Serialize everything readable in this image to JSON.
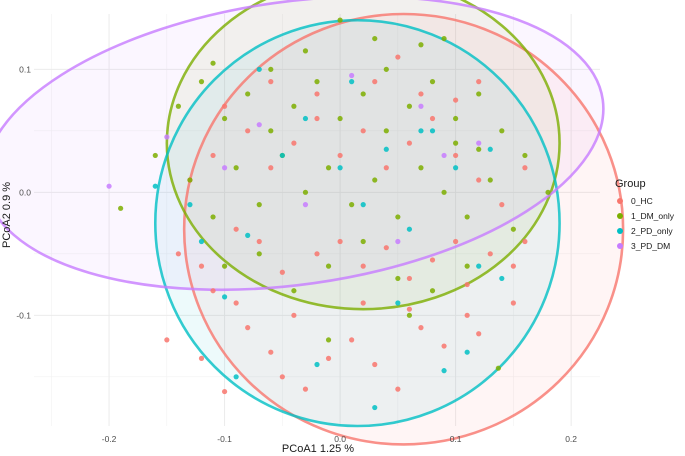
{
  "chart_data": {
    "type": "scatter",
    "xlabel": "PCoA1  1.25 %",
    "ylabel": "PCoA2  0.9 %",
    "xlim": [
      -0.265,
      0.225
    ],
    "ylim": [
      -0.19,
      0.145
    ],
    "x_ticks": [
      -0.2,
      -0.1,
      0.0,
      0.1,
      0.2
    ],
    "y_ticks": [
      -0.1,
      0.0,
      0.1
    ],
    "x_tick_labels": [
      "-0.2",
      "-0.1",
      "0.0",
      "0.1",
      "0.2"
    ],
    "y_tick_labels": [
      "-0.1",
      "0.0",
      "0.1"
    ],
    "grid": true,
    "legend": {
      "title": "Group",
      "position": "right",
      "entries": [
        "0_HC",
        "1_DM_only",
        "2_PD_only",
        "3_PD_DM"
      ]
    },
    "series": [
      {
        "name": "0_HC",
        "color": "#F8766D",
        "ellipse": {
          "center": [
            0.055,
            -0.03
          ],
          "rx": 0.19,
          "ry": 0.175,
          "angle": 0
        },
        "points": [
          [
            -0.15,
            -0.12
          ],
          [
            -0.12,
            -0.135
          ],
          [
            -0.1,
            -0.162
          ],
          [
            -0.08,
            -0.11
          ],
          [
            -0.06,
            -0.13
          ],
          [
            -0.05,
            -0.15
          ],
          [
            -0.03,
            -0.16
          ],
          [
            -0.01,
            -0.135
          ],
          [
            0.01,
            -0.12
          ],
          [
            0.03,
            -0.14
          ],
          [
            0.05,
            -0.16
          ],
          [
            0.07,
            -0.11
          ],
          [
            0.09,
            -0.125
          ],
          [
            0.11,
            -0.1
          ],
          [
            0.12,
            -0.115
          ],
          [
            -0.14,
            -0.05
          ],
          [
            -0.12,
            -0.06
          ],
          [
            -0.09,
            -0.03
          ],
          [
            -0.07,
            -0.04
          ],
          [
            -0.05,
            -0.065
          ],
          [
            -0.02,
            -0.05
          ],
          [
            0.0,
            -0.04
          ],
          [
            0.02,
            -0.06
          ],
          [
            0.04,
            -0.045
          ],
          [
            0.06,
            -0.07
          ],
          [
            0.08,
            -0.055
          ],
          [
            0.1,
            -0.04
          ],
          [
            0.13,
            -0.05
          ],
          [
            0.15,
            -0.06
          ],
          [
            0.16,
            -0.04
          ],
          [
            -0.13,
            0.01
          ],
          [
            -0.11,
            0.03
          ],
          [
            -0.08,
            0.05
          ],
          [
            -0.06,
            0.02
          ],
          [
            -0.04,
            0.04
          ],
          [
            -0.02,
            0.06
          ],
          [
            0.0,
            0.03
          ],
          [
            0.02,
            0.05
          ],
          [
            0.04,
            0.02
          ],
          [
            0.06,
            0.04
          ],
          [
            0.08,
            0.06
          ],
          [
            0.1,
            0.03
          ],
          [
            0.12,
            0.01
          ],
          [
            0.14,
            -0.01
          ],
          [
            0.16,
            0.02
          ],
          [
            -0.1,
            0.07
          ],
          [
            -0.06,
            0.09
          ],
          [
            -0.02,
            0.08
          ],
          [
            0.03,
            0.09
          ],
          [
            0.07,
            0.08
          ],
          [
            0.1,
            0.075
          ],
          [
            0.12,
            0.09
          ],
          [
            0.05,
            0.11
          ],
          [
            -0.09,
            -0.09
          ],
          [
            -0.04,
            -0.1
          ],
          [
            0.02,
            -0.09
          ],
          [
            0.06,
            -0.095
          ],
          [
            0.11,
            -0.075
          ],
          [
            0.15,
            -0.09
          ],
          [
            -0.11,
            -0.08
          ]
        ]
      },
      {
        "name": "1_DM_only",
        "color": "#7CAE00",
        "ellipse": {
          "center": [
            0.02,
            0.04
          ],
          "rx": 0.17,
          "ry": 0.135,
          "angle": 0
        },
        "points": [
          [
            -0.19,
            -0.013
          ],
          [
            -0.16,
            0.03
          ],
          [
            -0.14,
            0.07
          ],
          [
            -0.12,
            0.09
          ],
          [
            -0.1,
            0.06
          ],
          [
            -0.08,
            0.08
          ],
          [
            -0.06,
            0.1
          ],
          [
            -0.04,
            0.07
          ],
          [
            -0.02,
            0.09
          ],
          [
            0.0,
            0.06
          ],
          [
            0.02,
            0.08
          ],
          [
            0.04,
            0.1
          ],
          [
            0.06,
            0.07
          ],
          [
            0.08,
            0.09
          ],
          [
            0.1,
            0.06
          ],
          [
            0.12,
            0.08
          ],
          [
            0.14,
            0.05
          ],
          [
            0.16,
            0.03
          ],
          [
            0.18,
            0.0
          ],
          [
            0.15,
            -0.03
          ],
          [
            -0.13,
            0.01
          ],
          [
            -0.11,
            -0.02
          ],
          [
            -0.09,
            0.02
          ],
          [
            -0.07,
            -0.01
          ],
          [
            -0.05,
            0.03
          ],
          [
            -0.03,
            0.0
          ],
          [
            -0.01,
            0.02
          ],
          [
            0.01,
            -0.01
          ],
          [
            0.03,
            0.01
          ],
          [
            0.05,
            -0.02
          ],
          [
            0.07,
            0.02
          ],
          [
            0.09,
            0.0
          ],
          [
            0.11,
            -0.02
          ],
          [
            0.13,
            0.01
          ],
          [
            -0.1,
            -0.06
          ],
          [
            -0.07,
            -0.05
          ],
          [
            -0.04,
            -0.08
          ],
          [
            -0.01,
            -0.06
          ],
          [
            0.02,
            -0.04
          ],
          [
            0.05,
            -0.07
          ],
          [
            0.08,
            -0.08
          ],
          [
            0.11,
            -0.06
          ],
          [
            0.0,
            0.14
          ],
          [
            0.07,
            0.12
          ],
          [
            0.09,
            0.125
          ],
          [
            -0.11,
            0.105
          ],
          [
            -0.03,
            0.115
          ],
          [
            0.03,
            0.125
          ],
          [
            0.137,
            -0.143
          ],
          [
            0.06,
            -0.1
          ],
          [
            -0.01,
            -0.12
          ],
          [
            0.1,
            0.04
          ],
          [
            0.12,
            0.035
          ],
          [
            0.04,
            0.05
          ],
          [
            -0.06,
            0.05
          ]
        ]
      },
      {
        "name": "2_PD_only",
        "color": "#00BFC4",
        "ellipse": {
          "center": [
            0.015,
            -0.025
          ],
          "rx": 0.175,
          "ry": 0.165,
          "angle": 0
        },
        "points": [
          [
            -0.16,
            0.005
          ],
          [
            -0.13,
            -0.01
          ],
          [
            -0.12,
            -0.04
          ],
          [
            -0.1,
            -0.085
          ],
          [
            -0.08,
            -0.035
          ],
          [
            -0.05,
            0.03
          ],
          [
            -0.03,
            0.06
          ],
          [
            0.0,
            0.02
          ],
          [
            0.02,
            -0.01
          ],
          [
            0.04,
            0.035
          ],
          [
            0.06,
            -0.03
          ],
          [
            0.08,
            0.05
          ],
          [
            0.1,
            0.02
          ],
          [
            0.12,
            -0.06
          ],
          [
            0.14,
            -0.07
          ],
          [
            -0.09,
            -0.15
          ],
          [
            -0.02,
            -0.14
          ],
          [
            0.03,
            -0.175
          ],
          [
            0.05,
            -0.09
          ],
          [
            0.09,
            -0.145
          ],
          [
            0.11,
            -0.13
          ],
          [
            -0.07,
            0.1
          ],
          [
            0.01,
            0.09
          ],
          [
            0.07,
            0.05
          ],
          [
            0.13,
            0.035
          ]
        ]
      },
      {
        "name": "3_PD_DM",
        "color": "#C77CFF",
        "ellipse": {
          "center": [
            -0.04,
            0.04
          ],
          "rx": 0.27,
          "ry": 0.115,
          "angle": -8
        },
        "points": [
          [
            -0.2,
            0.005
          ],
          [
            -0.15,
            0.045
          ],
          [
            -0.07,
            0.055
          ],
          [
            0.01,
            0.095
          ],
          [
            0.07,
            0.07
          ],
          [
            0.09,
            0.03
          ],
          [
            -0.03,
            -0.01
          ],
          [
            0.05,
            -0.04
          ],
          [
            0.12,
            0.04
          ],
          [
            -0.1,
            0.02
          ]
        ]
      }
    ]
  }
}
